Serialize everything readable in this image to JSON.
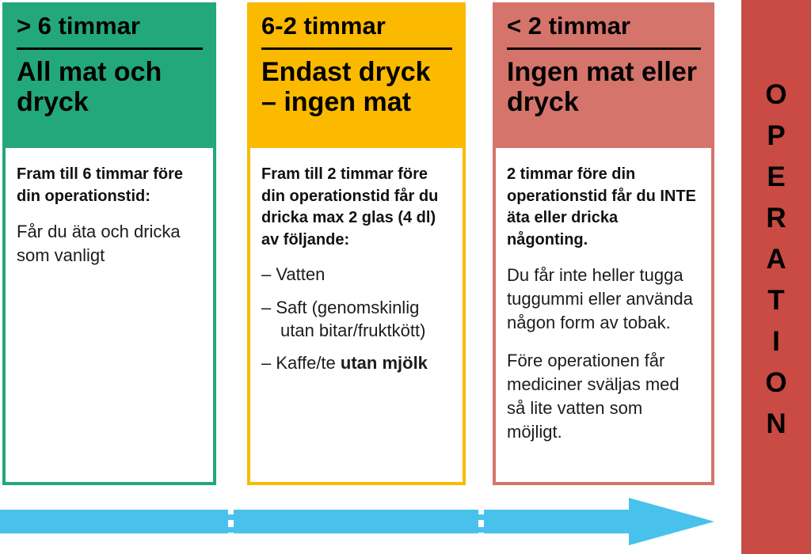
{
  "palette": {
    "green": "#23A87B",
    "yellow": "#FBBA00",
    "salmon": "#D5746B",
    "red_bar": "#C94B43",
    "arrow_blue": "#48C2EC",
    "text": "#000000"
  },
  "columns": [
    {
      "time": "> 6 timmar",
      "title": "All mat och dryck",
      "lead": "Fram till 6 timmar före din operationstid:",
      "text": "Får du äta och dricka som vanligt"
    },
    {
      "time": "6-2 timmar",
      "title": "Endast dryck – ingen mat",
      "lead": "Fram till 2 timmar före din operationstid får du dricka max 2 glas (4 dl) av följande:",
      "list": [
        {
          "text": "– Vatten"
        },
        {
          "text": "– Saft (genomskinlig utan bitar/fruktkött)"
        },
        {
          "text": "– Kaffe/te ",
          "bold": "utan mjölk"
        }
      ]
    },
    {
      "time": "< 2 timmar",
      "title": "Ingen mat eller dryck",
      "lead": "2 timmar före din operationstid får du INTE äta eller dricka någonting.",
      "paragraphs": [
        "Du får inte heller tugga tuggummi eller använda någon form av tobak.",
        "Före operationen får mediciner sväljas med så lite vatten som möjligt."
      ]
    }
  ],
  "operation": {
    "word": "OPERATION",
    "letters": [
      "O",
      "P",
      "E",
      "R",
      "A",
      "T",
      "I",
      "O",
      "N"
    ]
  },
  "timeline": {
    "type": "arrow-right",
    "dividers": 2
  }
}
